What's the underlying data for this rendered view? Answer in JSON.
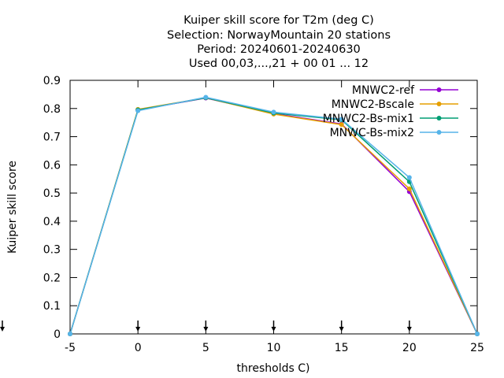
{
  "chart_data": {
    "type": "line",
    "title_lines": [
      "Kuiper skill score  for T2m (deg C)",
      "Selection: NorwayMountain      20 stations",
      "Period: 20240601-20240630",
      "Used 00,03,...,21 + 00 01 ... 12"
    ],
    "xlabel": "thresholds C)",
    "ylabel": "Kuiper skill score",
    "x": [
      -5,
      0,
      5,
      10,
      15,
      20,
      25
    ],
    "xlim": [
      -5,
      25
    ],
    "ylim": [
      0,
      0.9
    ],
    "xticks": [
      "-5",
      "0",
      "5",
      "10",
      "15",
      "20",
      "25"
    ],
    "yticks": [
      "0",
      "0.1",
      "0.2",
      "0.3",
      "0.4",
      "0.5",
      "0.6",
      "0.7",
      "0.8",
      "0.9"
    ],
    "grid": false,
    "legend_position": "top-right",
    "series": [
      {
        "name": "MNWC2-ref",
        "color": "#9400d3",
        "values": [
          0.0,
          0.795,
          0.837,
          0.782,
          0.745,
          0.505,
          0.0
        ]
      },
      {
        "name": "MNWC2-Bscale",
        "color": "#e69f00",
        "values": [
          0.0,
          0.797,
          0.838,
          0.78,
          0.743,
          0.515,
          0.0
        ]
      },
      {
        "name": "MNWC2-Bs-mix1",
        "color": "#009e73",
        "values": [
          0.0,
          0.795,
          0.838,
          0.784,
          0.76,
          0.54,
          0.0
        ]
      },
      {
        "name": "MNWC-Bs-mix2",
        "color": "#56b4e9",
        "values": [
          0.0,
          0.792,
          0.84,
          0.787,
          0.762,
          0.555,
          0.0
        ]
      }
    ]
  }
}
